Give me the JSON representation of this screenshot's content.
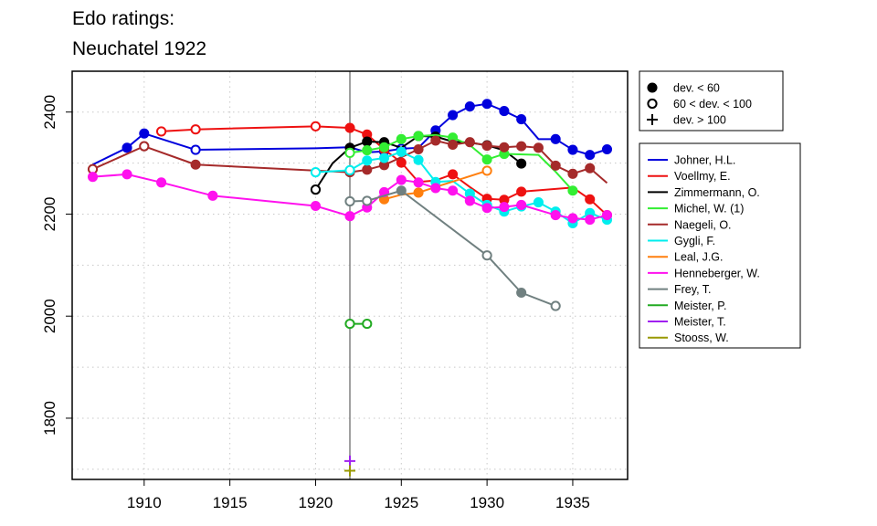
{
  "chart_data": {
    "type": "line",
    "title": [
      "Edo ratings:",
      "Neuchatel 1922"
    ],
    "xlabel": "",
    "ylabel": "",
    "xlim": [
      1905.8,
      1938.2
    ],
    "ylim": [
      1680,
      2480
    ],
    "x_ticks": [
      1910,
      1915,
      1920,
      1925,
      1930,
      1935
    ],
    "y_ticks": [
      1800,
      2000,
      2200,
      2400
    ],
    "grid": true,
    "reference_line_x": 1922,
    "marker_legend": [
      {
        "symbol": "filled-circle",
        "label": "dev. < 60"
      },
      {
        "symbol": "open-circle",
        "label": "60 < dev. < 100"
      },
      {
        "symbol": "plus",
        "label": "dev. > 100"
      }
    ],
    "series": [
      {
        "name": "Johner, H.L.",
        "color": "#0000dd",
        "points": [
          [
            1907,
            2297,
            "n"
          ],
          [
            1909,
            2330,
            "f"
          ],
          [
            1910,
            2358,
            "f"
          ],
          [
            1913,
            2326,
            "o"
          ],
          [
            1920,
            2329,
            "n"
          ],
          [
            1922,
            2331,
            "n"
          ],
          [
            1923,
            2321,
            "n"
          ],
          [
            1924,
            2323,
            "o"
          ],
          [
            1925,
            2328,
            "o"
          ],
          [
            1926,
            2330,
            "n"
          ],
          [
            1927,
            2364,
            "f"
          ],
          [
            1928,
            2394,
            "f"
          ],
          [
            1929,
            2411,
            "f"
          ],
          [
            1930,
            2416,
            "f"
          ],
          [
            1931,
            2402,
            "f"
          ],
          [
            1932,
            2386,
            "f"
          ],
          [
            1933,
            2347,
            "n"
          ],
          [
            1934,
            2347,
            "f"
          ],
          [
            1935,
            2326,
            "f"
          ],
          [
            1936,
            2316,
            "f"
          ],
          [
            1937,
            2327,
            "f"
          ]
        ]
      },
      {
        "name": "Voellmy, E.",
        "color": "#ee1111",
        "points": [
          [
            1911,
            2362,
            "o"
          ],
          [
            1913,
            2366,
            "o"
          ],
          [
            1920,
            2372,
            "o"
          ],
          [
            1922,
            2369,
            "f"
          ],
          [
            1923,
            2356,
            "f"
          ],
          [
            1924,
            2327,
            "f"
          ],
          [
            1925,
            2301,
            "f"
          ],
          [
            1926,
            2263,
            "n"
          ],
          [
            1927,
            2266,
            "n"
          ],
          [
            1928,
            2278,
            "f"
          ],
          [
            1929,
            2253,
            "n"
          ],
          [
            1930,
            2230,
            "f"
          ],
          [
            1931,
            2228,
            "f"
          ],
          [
            1932,
            2244,
            "f"
          ],
          [
            1935,
            2252,
            "n"
          ],
          [
            1936,
            2229,
            "f"
          ],
          [
            1937,
            2198,
            "f"
          ]
        ]
      },
      {
        "name": "Zimmermann, O.",
        "color": "#000000",
        "points": [
          [
            1920,
            2248,
            "o"
          ],
          [
            1921,
            2300,
            "n"
          ],
          [
            1922,
            2330,
            "f"
          ],
          [
            1923,
            2342,
            "f"
          ],
          [
            1924,
            2341,
            "f"
          ],
          [
            1925,
            2330,
            "n"
          ],
          [
            1926,
            2353,
            "f"
          ],
          [
            1927,
            2352,
            "f"
          ],
          [
            1928,
            2342,
            "n"
          ],
          [
            1929,
            2340,
            "n"
          ],
          [
            1930,
            2335,
            "f"
          ],
          [
            1931,
            2325,
            "n"
          ],
          [
            1932,
            2299,
            "f"
          ]
        ]
      },
      {
        "name": "Michel, W. (1)",
        "color": "#33ee33",
        "points": [
          [
            1922,
            2320,
            "o"
          ],
          [
            1923,
            2325,
            "f"
          ],
          [
            1924,
            2331,
            "f"
          ],
          [
            1925,
            2347,
            "f"
          ],
          [
            1926,
            2353,
            "f"
          ],
          [
            1927,
            2355,
            "n"
          ],
          [
            1928,
            2350,
            "f"
          ],
          [
            1929,
            2335,
            "n"
          ],
          [
            1930,
            2307,
            "f"
          ],
          [
            1931,
            2318,
            "f"
          ],
          [
            1933,
            2316,
            "n"
          ],
          [
            1934,
            2283,
            "n"
          ],
          [
            1935,
            2246,
            "f"
          ]
        ]
      },
      {
        "name": "Naegeli, O.",
        "color": "#a52a2a",
        "points": [
          [
            1907,
            2288,
            "o"
          ],
          [
            1910,
            2333,
            "o"
          ],
          [
            1913,
            2297,
            "f"
          ],
          [
            1922,
            2282,
            "f"
          ],
          [
            1923,
            2287,
            "f"
          ],
          [
            1924,
            2296,
            "f"
          ],
          [
            1926,
            2327,
            "f"
          ],
          [
            1927,
            2344,
            "f"
          ],
          [
            1928,
            2336,
            "f"
          ],
          [
            1929,
            2341,
            "f"
          ],
          [
            1930,
            2334,
            "f"
          ],
          [
            1931,
            2331,
            "f"
          ],
          [
            1932,
            2333,
            "f"
          ],
          [
            1933,
            2330,
            "f"
          ],
          [
            1934,
            2295,
            "f"
          ],
          [
            1935,
            2279,
            "f"
          ],
          [
            1936,
            2290,
            "f"
          ],
          [
            1937,
            2261,
            "n"
          ]
        ]
      },
      {
        "name": "Gygli, F.",
        "color": "#00eeee",
        "points": [
          [
            1920,
            2282,
            "o"
          ],
          [
            1922,
            2286,
            "o"
          ],
          [
            1923,
            2305,
            "f"
          ],
          [
            1924,
            2310,
            "f"
          ],
          [
            1925,
            2322,
            "f"
          ],
          [
            1926,
            2306,
            "f"
          ],
          [
            1927,
            2263,
            "f"
          ],
          [
            1928,
            2265,
            "n"
          ],
          [
            1929,
            2240,
            "f"
          ],
          [
            1930,
            2218,
            "f"
          ],
          [
            1931,
            2205,
            "f"
          ],
          [
            1932,
            2215,
            "f"
          ],
          [
            1933,
            2223,
            "f"
          ],
          [
            1934,
            2205,
            "f"
          ],
          [
            1935,
            2182,
            "f"
          ],
          [
            1936,
            2202,
            "f"
          ],
          [
            1937,
            2189,
            "f"
          ]
        ]
      },
      {
        "name": "Leal, J.G.",
        "color": "#ff7f0e",
        "points": [
          [
            1924,
            2229,
            "f"
          ],
          [
            1925,
            2238,
            "n"
          ],
          [
            1926,
            2242,
            "f"
          ],
          [
            1927,
            2253,
            "n"
          ],
          [
            1930,
            2285,
            "o"
          ]
        ]
      },
      {
        "name": "Henneberger, W.",
        "color": "#ff11ee",
        "points": [
          [
            1907,
            2273,
            "f"
          ],
          [
            1909,
            2278,
            "f"
          ],
          [
            1911,
            2262,
            "f"
          ],
          [
            1914,
            2236,
            "f"
          ],
          [
            1920,
            2216,
            "f"
          ],
          [
            1922,
            2196,
            "f"
          ],
          [
            1923,
            2213,
            "f"
          ],
          [
            1924,
            2243,
            "f"
          ],
          [
            1925,
            2267,
            "f"
          ],
          [
            1926,
            2262,
            "f"
          ],
          [
            1927,
            2251,
            "f"
          ],
          [
            1928,
            2246,
            "f"
          ],
          [
            1929,
            2226,
            "f"
          ],
          [
            1930,
            2212,
            "f"
          ],
          [
            1931,
            2214,
            "f"
          ],
          [
            1932,
            2218,
            "f"
          ],
          [
            1934,
            2198,
            "f"
          ],
          [
            1935,
            2192,
            "f"
          ],
          [
            1936,
            2189,
            "f"
          ],
          [
            1937,
            2198,
            "f"
          ]
        ]
      },
      {
        "name": "Frey, T.",
        "color": "#708080",
        "points": [
          [
            1922,
            2225,
            "o"
          ],
          [
            1923,
            2226,
            "o"
          ],
          [
            1925,
            2246,
            "f"
          ],
          [
            1930,
            2119,
            "o"
          ],
          [
            1932,
            2046,
            "f"
          ],
          [
            1934,
            2020,
            "o"
          ]
        ]
      },
      {
        "name": "Meister, P.",
        "color": "#22aa22",
        "points": [
          [
            1922,
            1985,
            "o"
          ],
          [
            1923,
            1985,
            "o"
          ]
        ]
      },
      {
        "name": "Meister, T.",
        "color": "#a020f0",
        "points": [
          [
            1922,
            1716,
            "p"
          ]
        ]
      },
      {
        "name": "Stooss, W.",
        "color": "#999900",
        "points": [
          [
            1922,
            1697,
            "p"
          ]
        ]
      }
    ]
  }
}
